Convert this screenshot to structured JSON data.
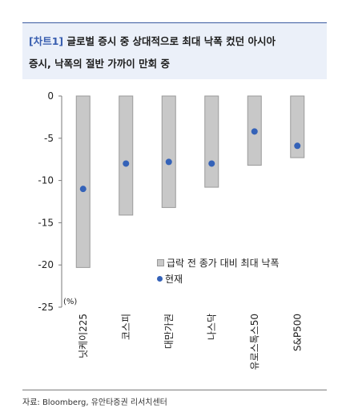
{
  "header": {
    "tag": "[차트1]",
    "title_line1": "글로벌 증시 중 상대적으로 최대 낙폭 컸던 아시아",
    "title_line2": "증시, 낙폭의 절반 가까이 만회 중"
  },
  "chart_data": {
    "type": "bar",
    "categories": [
      "닛케이225",
      "코스피",
      "대만가권",
      "나스닥",
      "유로스톡스50",
      "S&P500"
    ],
    "series": [
      {
        "name": "급락 전 종가 대비 최대 낙폭",
        "kind": "bar",
        "values": [
          -20.3,
          -14.1,
          -13.2,
          -10.8,
          -8.2,
          -7.3
        ]
      },
      {
        "name": "현재",
        "kind": "marker",
        "values": [
          -11.0,
          -8.0,
          -7.8,
          -8.0,
          -4.2,
          -5.9
        ]
      }
    ],
    "yunit": "(%)",
    "ylim": [
      -25,
      0
    ],
    "yticks": [
      0,
      -5,
      -10,
      -15,
      -20,
      -25
    ],
    "legend_position": "bottom-right",
    "colors": {
      "bar_fill": "#c8c8c8",
      "bar_stroke": "#9a9a9a",
      "marker": "#3462b8"
    }
  },
  "source": "자료: Bloomberg, 유안타증권 리서치센터"
}
